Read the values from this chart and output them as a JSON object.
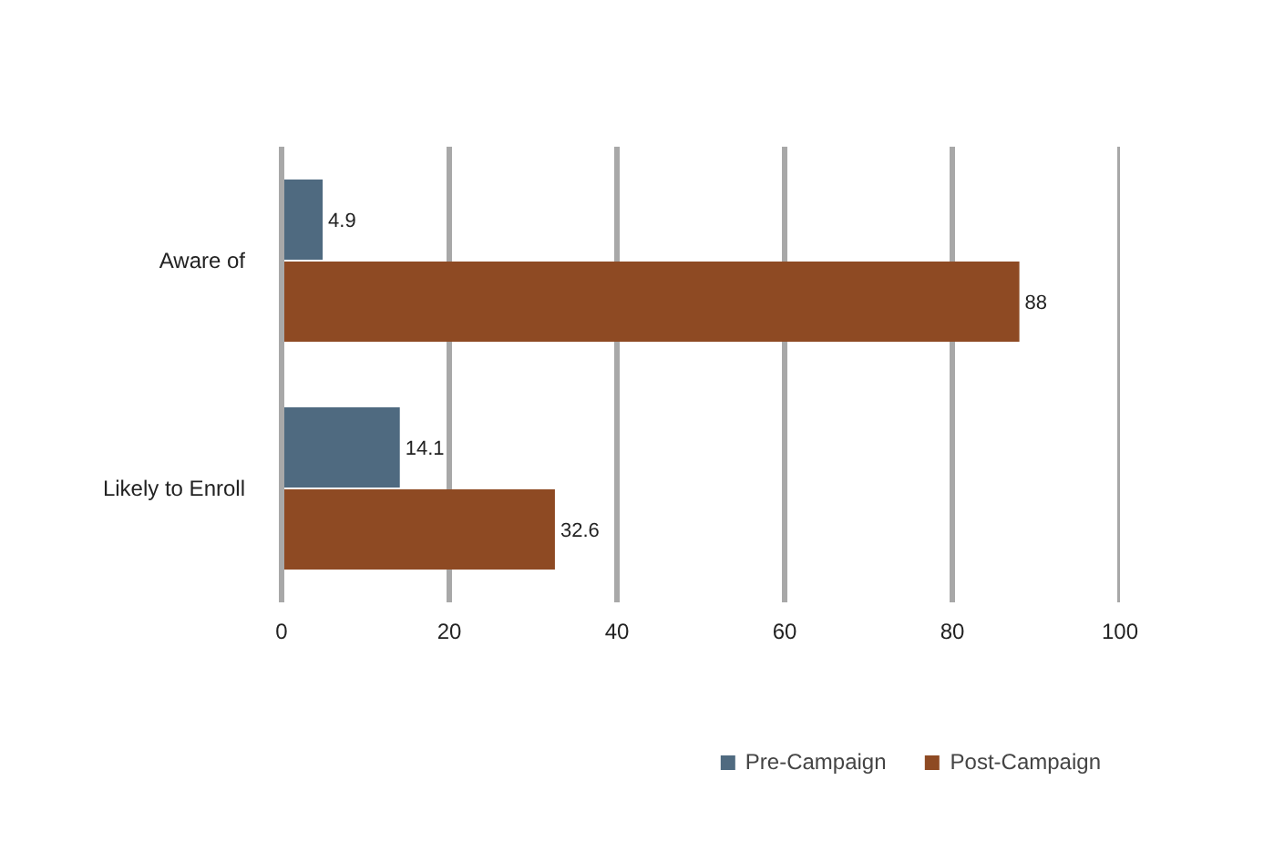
{
  "chart_data": {
    "type": "bar",
    "orientation": "horizontal",
    "categories": [
      "Aware of",
      "Likely to Enroll"
    ],
    "series": [
      {
        "name": "Pre-Campaign",
        "color": "#4f6a80",
        "values": [
          4.9,
          14.1
        ],
        "value_labels": [
          "4.9",
          "14.1"
        ]
      },
      {
        "name": "Post-Campaign",
        "color": "#8e4a23",
        "values": [
          88,
          32.6
        ],
        "value_labels": [
          "88",
          "32.6"
        ]
      }
    ],
    "xlim": [
      0,
      100
    ],
    "xticks": [
      0,
      20,
      40,
      60,
      80,
      100
    ],
    "grid": "x",
    "legend": "bottom"
  }
}
